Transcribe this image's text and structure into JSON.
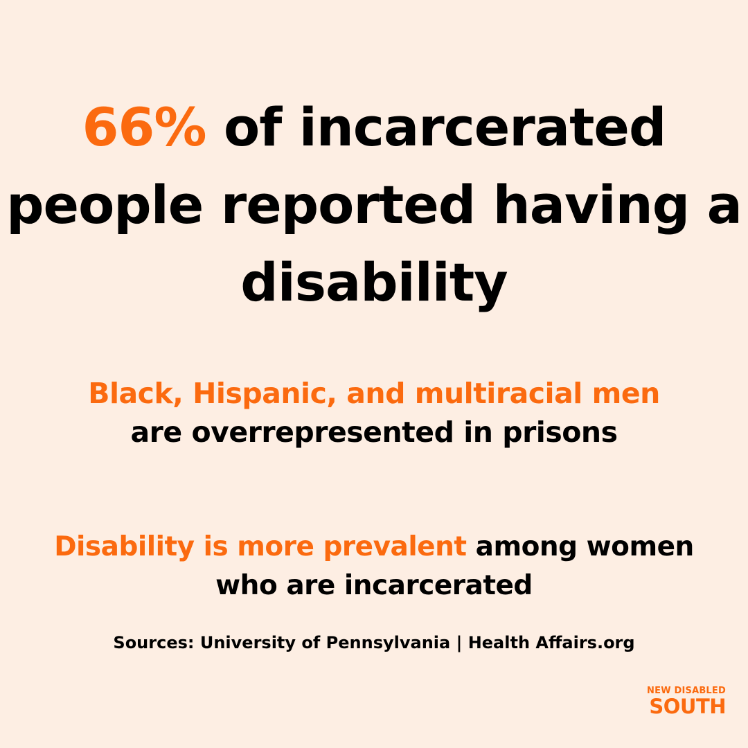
{
  "headline": {
    "highlight": "66%",
    "line1_rest": " of incarcerated",
    "line2": "people reported having a",
    "line3": "disability"
  },
  "fact1": {
    "highlight": "Black, Hispanic, and multiracial men",
    "rest": "are overrepresented in prisons"
  },
  "fact2": {
    "highlight": "Disability is more prevalent",
    "rest_line1": " among women",
    "rest_line2": "who are incarcerated"
  },
  "sources": "Sources: University of Pennsylvania | Health Affairs.org",
  "logo": {
    "top": "NEW DISABLED",
    "bottom": "SOUTH"
  },
  "colors": {
    "background": "#fdeee3",
    "accent": "#fb6a0f",
    "text": "#000000"
  }
}
